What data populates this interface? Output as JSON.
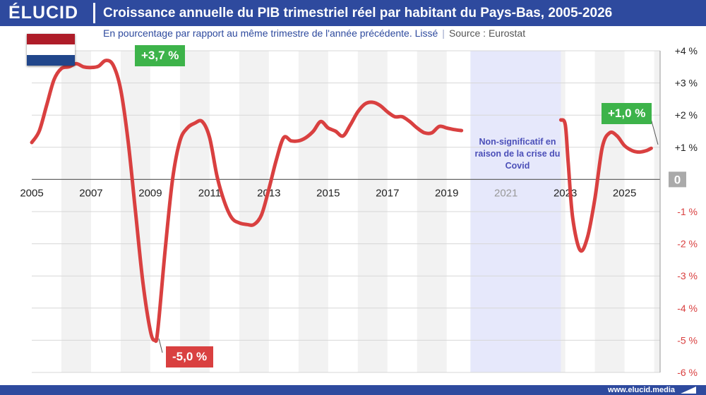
{
  "brand": "ÉLUCID",
  "title": "Croissance annuelle du PIB trimestriel réel par habitant du Pays-Bas, 2005-2026",
  "subtitle": "En pourcentage par rapport au même trimestre de l'année précédente. Lissé",
  "source": "Source : Eurostat",
  "footer": "www.elucid.media",
  "flag_colors": [
    "#ae1c28",
    "#ffffff",
    "#21468b"
  ],
  "colors": {
    "line": "#d94040",
    "positive": "#3db34a",
    "negative": "#d94040",
    "covid_band": "#e6e8fb",
    "header": "#2e4a9e"
  },
  "annotations": {
    "max": "+3,7 %",
    "min": "-5,0 %",
    "last": "+1,0 %",
    "covid": "Non-significatif en raison de la crise du Covid"
  },
  "chart_data": {
    "type": "line",
    "title": "Croissance annuelle du PIB trimestriel réel par habitant du Pays-Bas, 2005-2026",
    "xlabel": "",
    "ylabel": "",
    "xlim": [
      2005,
      2026.2
    ],
    "ylim": [
      -6,
      4
    ],
    "x_ticks": [
      "2005",
      "2007",
      "2009",
      "2011",
      "2013",
      "2015",
      "2017",
      "2019",
      "2021",
      "2023",
      "2025"
    ],
    "y_ticks": [
      "+4 %",
      "+3 %",
      "+2 %",
      "+1 %",
      "0",
      "-1 %",
      "-2 %",
      "-3 %",
      "-4 %",
      "-5 %",
      "-6 %"
    ],
    "grid": true,
    "covid_gap": [
      2019.8,
      2022.85
    ],
    "series": [
      {
        "segments": [
          [
            [
              2005.0,
              1.15
            ],
            [
              2005.25,
              1.5
            ],
            [
              2005.5,
              2.3
            ],
            [
              2005.75,
              3.1
            ],
            [
              2006.0,
              3.45
            ],
            [
              2006.25,
              3.5
            ],
            [
              2006.5,
              3.6
            ],
            [
              2006.75,
              3.5
            ],
            [
              2007.0,
              3.48
            ],
            [
              2007.25,
              3.52
            ],
            [
              2007.5,
              3.7
            ],
            [
              2007.75,
              3.55
            ],
            [
              2008.0,
              2.8
            ],
            [
              2008.25,
              1.2
            ],
            [
              2008.5,
              -1.0
            ],
            [
              2008.75,
              -3.2
            ],
            [
              2009.0,
              -4.7
            ],
            [
              2009.15,
              -5.0
            ],
            [
              2009.25,
              -4.7
            ],
            [
              2009.5,
              -2.2
            ],
            [
              2009.75,
              0.0
            ],
            [
              2010.0,
              1.2
            ],
            [
              2010.25,
              1.6
            ],
            [
              2010.5,
              1.75
            ],
            [
              2010.75,
              1.8
            ],
            [
              2011.0,
              1.3
            ],
            [
              2011.25,
              0.1
            ],
            [
              2011.5,
              -0.7
            ],
            [
              2011.75,
              -1.2
            ],
            [
              2012.0,
              -1.35
            ],
            [
              2012.25,
              -1.4
            ],
            [
              2012.5,
              -1.4
            ],
            [
              2012.75,
              -1.1
            ],
            [
              2013.0,
              -0.3
            ],
            [
              2013.25,
              0.6
            ],
            [
              2013.5,
              1.3
            ],
            [
              2013.75,
              1.2
            ],
            [
              2014.0,
              1.2
            ],
            [
              2014.25,
              1.3
            ],
            [
              2014.5,
              1.5
            ],
            [
              2014.75,
              1.8
            ],
            [
              2015.0,
              1.6
            ],
            [
              2015.25,
              1.5
            ],
            [
              2015.5,
              1.35
            ],
            [
              2015.75,
              1.7
            ],
            [
              2016.0,
              2.1
            ],
            [
              2016.25,
              2.35
            ],
            [
              2016.5,
              2.4
            ],
            [
              2016.75,
              2.3
            ],
            [
              2017.0,
              2.1
            ],
            [
              2017.25,
              1.95
            ],
            [
              2017.5,
              1.95
            ],
            [
              2017.75,
              1.8
            ],
            [
              2018.0,
              1.6
            ],
            [
              2018.25,
              1.45
            ],
            [
              2018.5,
              1.45
            ],
            [
              2018.75,
              1.65
            ],
            [
              2019.0,
              1.6
            ],
            [
              2019.25,
              1.55
            ],
            [
              2019.5,
              1.52
            ]
          ],
          [
            [
              2022.85,
              1.85
            ],
            [
              2023.0,
              1.7
            ],
            [
              2023.1,
              0.5
            ],
            [
              2023.25,
              -1.2
            ],
            [
              2023.5,
              -2.2
            ],
            [
              2023.75,
              -1.8
            ],
            [
              2024.0,
              -0.6
            ],
            [
              2024.25,
              1.0
            ],
            [
              2024.5,
              1.45
            ],
            [
              2024.75,
              1.35
            ],
            [
              2025.0,
              1.05
            ],
            [
              2025.25,
              0.9
            ],
            [
              2025.5,
              0.85
            ],
            [
              2025.75,
              0.9
            ],
            [
              2025.9,
              0.97
            ]
          ]
        ]
      }
    ]
  }
}
